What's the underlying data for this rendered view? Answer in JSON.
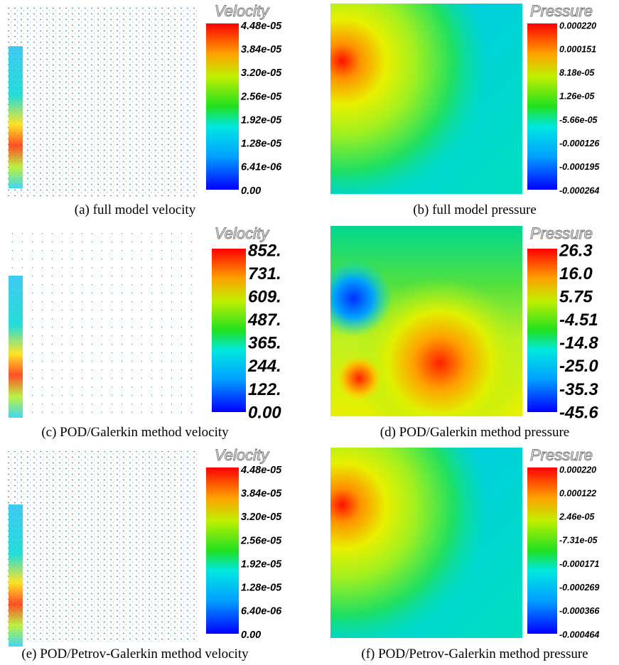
{
  "panels": [
    {
      "caption": "(a) full model velocity",
      "legend_title": "Velocity",
      "ticks": [
        "4.48e-05",
        "3.84e-05",
        "3.20e-05",
        "2.56e-05",
        "1.92e-05",
        "1.28e-05",
        "6.41e-06",
        "0.00"
      ]
    },
    {
      "caption": "(b) full model pressure",
      "legend_title": "Pressure",
      "ticks": [
        "0.000220",
        "0.000151",
        "8.18e-05",
        "1.26e-05",
        "-5.66e-05",
        "-0.000126",
        "-0.000195",
        "-0.000264"
      ]
    },
    {
      "caption": "(c) POD/Galerkin method velocity",
      "legend_title": "Velocity",
      "ticks": [
        "852.",
        "731.",
        "609.",
        "487.",
        "365.",
        "244.",
        "122.",
        "0.00"
      ]
    },
    {
      "caption": "(d) POD/Galerkin method pressure",
      "legend_title": "Pressure",
      "ticks": [
        "26.3",
        "16.0",
        "5.75",
        "-4.51",
        "-14.8",
        "-25.0",
        "-35.3",
        "-45.6"
      ]
    },
    {
      "caption": "(e) POD/Petrov-Galerkin method velocity",
      "legend_title": "Velocity",
      "ticks": [
        "4.48e-05",
        "3.84e-05",
        "3.20e-05",
        "2.56e-05",
        "1.92e-05",
        "1.28e-05",
        "6.40e-06",
        "0.00"
      ]
    },
    {
      "caption": "(f) POD/Petrov-Galerkin method pressure",
      "legend_title": "Pressure",
      "ticks": [
        "0.000220",
        "0.000122",
        "2.46e-05",
        "-7.31e-05",
        "-0.000171",
        "-0.000269",
        "-0.000366",
        "-0.000464"
      ]
    }
  ]
}
